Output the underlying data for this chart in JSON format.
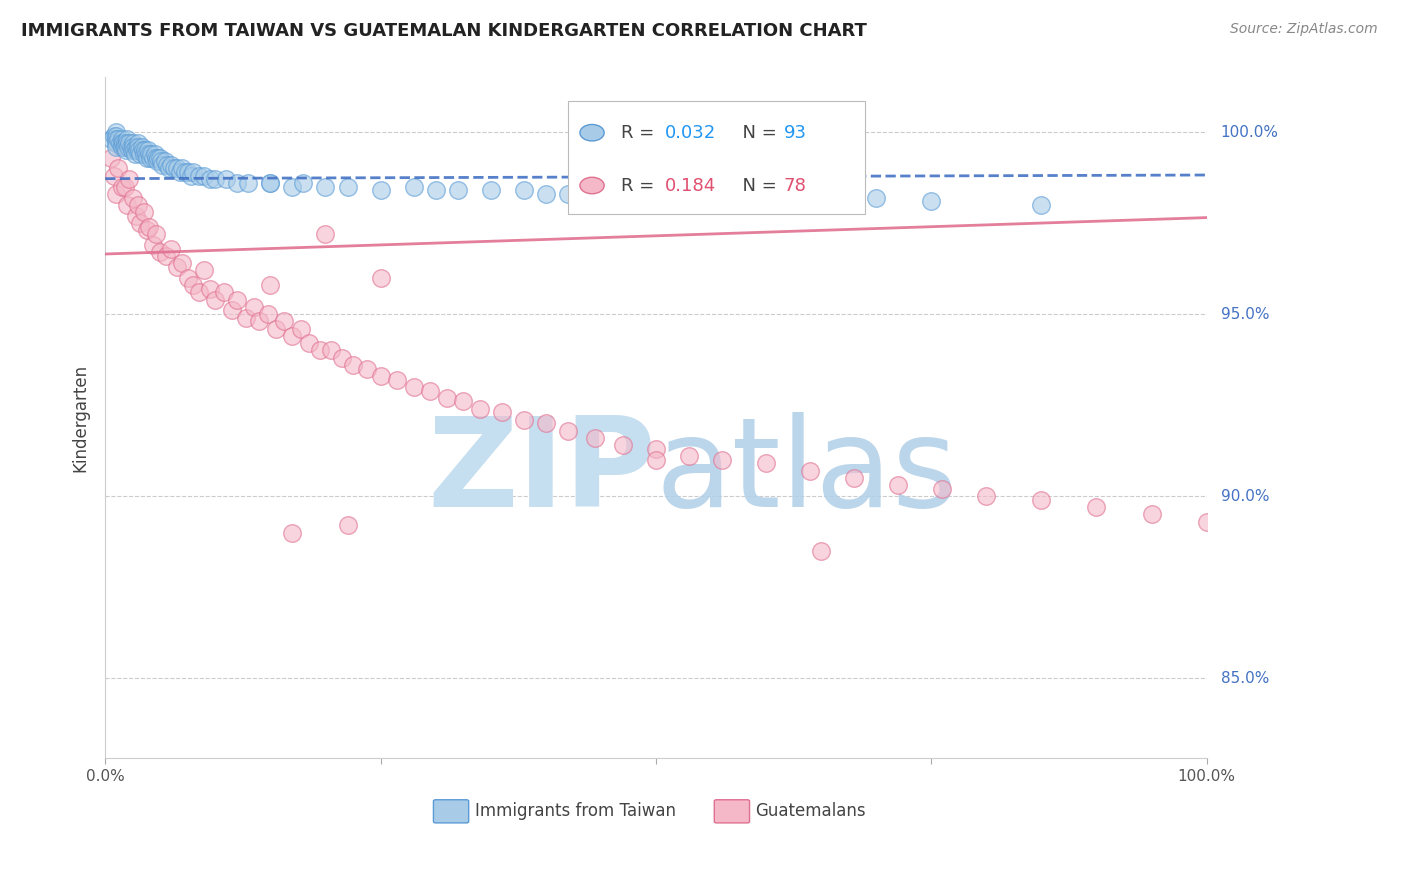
{
  "title": "IMMIGRANTS FROM TAIWAN VS GUATEMALAN KINDERGARTEN CORRELATION CHART",
  "source": "Source: ZipAtlas.com",
  "ylabel": "Kindergarten",
  "xlim": [
    0.0,
    1.0
  ],
  "ylim": [
    0.828,
    1.015
  ],
  "yticks": [
    0.85,
    0.9,
    0.95,
    1.0
  ],
  "ytick_labels": [
    "85.0%",
    "90.0%",
    "95.0%",
    "100.0%"
  ],
  "taiwan_R": 0.032,
  "taiwan_N": 93,
  "guatemalan_R": 0.184,
  "guatemalan_N": 78,
  "blue_scatter_color": "#a8cce8",
  "blue_edge_color": "#5b9bd5",
  "pink_scatter_color": "#f4b8c8",
  "pink_edge_color": "#e07090",
  "blue_line_color": "#4472c4",
  "pink_line_color": "#e07090",
  "right_label_color": "#4472c4",
  "grid_color": "#cccccc",
  "watermark_zip_color": "#c5dff0",
  "watermark_atlas_color": "#b0cfe8",
  "legend_blue_r_color": "#2196F3",
  "legend_pink_r_color": "#e05070",
  "blue_trend_start_y": 0.9872,
  "blue_trend_end_y": 0.9882,
  "pink_trend_start_y": 0.9665,
  "pink_trend_end_y": 0.9765,
  "taiwan_x": [
    0.005,
    0.008,
    0.01,
    0.01,
    0.01,
    0.01,
    0.01,
    0.012,
    0.013,
    0.015,
    0.015,
    0.015,
    0.016,
    0.017,
    0.018,
    0.018,
    0.019,
    0.02,
    0.02,
    0.021,
    0.022,
    0.023,
    0.024,
    0.025,
    0.025,
    0.026,
    0.027,
    0.028,
    0.029,
    0.03,
    0.03,
    0.031,
    0.032,
    0.033,
    0.034,
    0.035,
    0.036,
    0.037,
    0.038,
    0.039,
    0.04,
    0.041,
    0.042,
    0.043,
    0.045,
    0.046,
    0.047,
    0.048,
    0.05,
    0.051,
    0.052,
    0.054,
    0.056,
    0.058,
    0.06,
    0.062,
    0.065,
    0.068,
    0.07,
    0.072,
    0.075,
    0.078,
    0.08,
    0.085,
    0.09,
    0.095,
    0.1,
    0.11,
    0.12,
    0.13,
    0.15,
    0.17,
    0.2,
    0.25,
    0.3,
    0.35,
    0.4,
    0.45,
    0.5,
    0.6,
    0.7,
    0.15,
    0.18,
    0.22,
    0.28,
    0.32,
    0.38,
    0.42,
    0.48,
    0.54,
    0.62,
    0.68,
    0.75,
    0.85
  ],
  "taiwan_y": [
    0.998,
    0.999,
    1.0,
    0.999,
    0.998,
    0.997,
    0.996,
    0.998,
    0.997,
    0.998,
    0.997,
    0.996,
    0.997,
    0.996,
    0.997,
    0.996,
    0.995,
    0.998,
    0.997,
    0.996,
    0.997,
    0.996,
    0.995,
    0.997,
    0.996,
    0.995,
    0.994,
    0.996,
    0.995,
    0.997,
    0.996,
    0.995,
    0.994,
    0.996,
    0.995,
    0.994,
    0.995,
    0.994,
    0.993,
    0.995,
    0.994,
    0.993,
    0.994,
    0.993,
    0.994,
    0.993,
    0.992,
    0.993,
    0.993,
    0.992,
    0.991,
    0.992,
    0.991,
    0.99,
    0.991,
    0.99,
    0.99,
    0.989,
    0.99,
    0.989,
    0.989,
    0.988,
    0.989,
    0.988,
    0.988,
    0.987,
    0.987,
    0.987,
    0.986,
    0.986,
    0.986,
    0.985,
    0.985,
    0.984,
    0.984,
    0.984,
    0.983,
    0.983,
    0.983,
    0.982,
    0.982,
    0.986,
    0.986,
    0.985,
    0.985,
    0.984,
    0.984,
    0.983,
    0.983,
    0.982,
    0.982,
    0.981,
    0.981,
    0.98
  ],
  "guatemalan_x": [
    0.005,
    0.008,
    0.01,
    0.012,
    0.015,
    0.018,
    0.02,
    0.022,
    0.025,
    0.028,
    0.03,
    0.032,
    0.035,
    0.038,
    0.04,
    0.043,
    0.046,
    0.05,
    0.055,
    0.06,
    0.065,
    0.07,
    0.075,
    0.08,
    0.085,
    0.09,
    0.095,
    0.1,
    0.108,
    0.115,
    0.12,
    0.128,
    0.135,
    0.14,
    0.148,
    0.155,
    0.162,
    0.17,
    0.178,
    0.185,
    0.195,
    0.205,
    0.215,
    0.225,
    0.238,
    0.25,
    0.265,
    0.28,
    0.295,
    0.31,
    0.325,
    0.34,
    0.36,
    0.38,
    0.4,
    0.42,
    0.445,
    0.47,
    0.5,
    0.53,
    0.56,
    0.6,
    0.64,
    0.68,
    0.72,
    0.76,
    0.8,
    0.85,
    0.9,
    0.95,
    1.0,
    0.15,
    0.2,
    0.25,
    0.5,
    0.65,
    0.17,
    0.22
  ],
  "guatemalan_y": [
    0.993,
    0.988,
    0.983,
    0.99,
    0.985,
    0.985,
    0.98,
    0.987,
    0.982,
    0.977,
    0.98,
    0.975,
    0.978,
    0.973,
    0.974,
    0.969,
    0.972,
    0.967,
    0.966,
    0.968,
    0.963,
    0.964,
    0.96,
    0.958,
    0.956,
    0.962,
    0.957,
    0.954,
    0.956,
    0.951,
    0.954,
    0.949,
    0.952,
    0.948,
    0.95,
    0.946,
    0.948,
    0.944,
    0.946,
    0.942,
    0.94,
    0.94,
    0.938,
    0.936,
    0.935,
    0.933,
    0.932,
    0.93,
    0.929,
    0.927,
    0.926,
    0.924,
    0.923,
    0.921,
    0.92,
    0.918,
    0.916,
    0.914,
    0.913,
    0.911,
    0.91,
    0.909,
    0.907,
    0.905,
    0.903,
    0.902,
    0.9,
    0.899,
    0.897,
    0.895,
    0.893,
    0.958,
    0.972,
    0.96,
    0.91,
    0.885,
    0.89,
    0.892
  ]
}
